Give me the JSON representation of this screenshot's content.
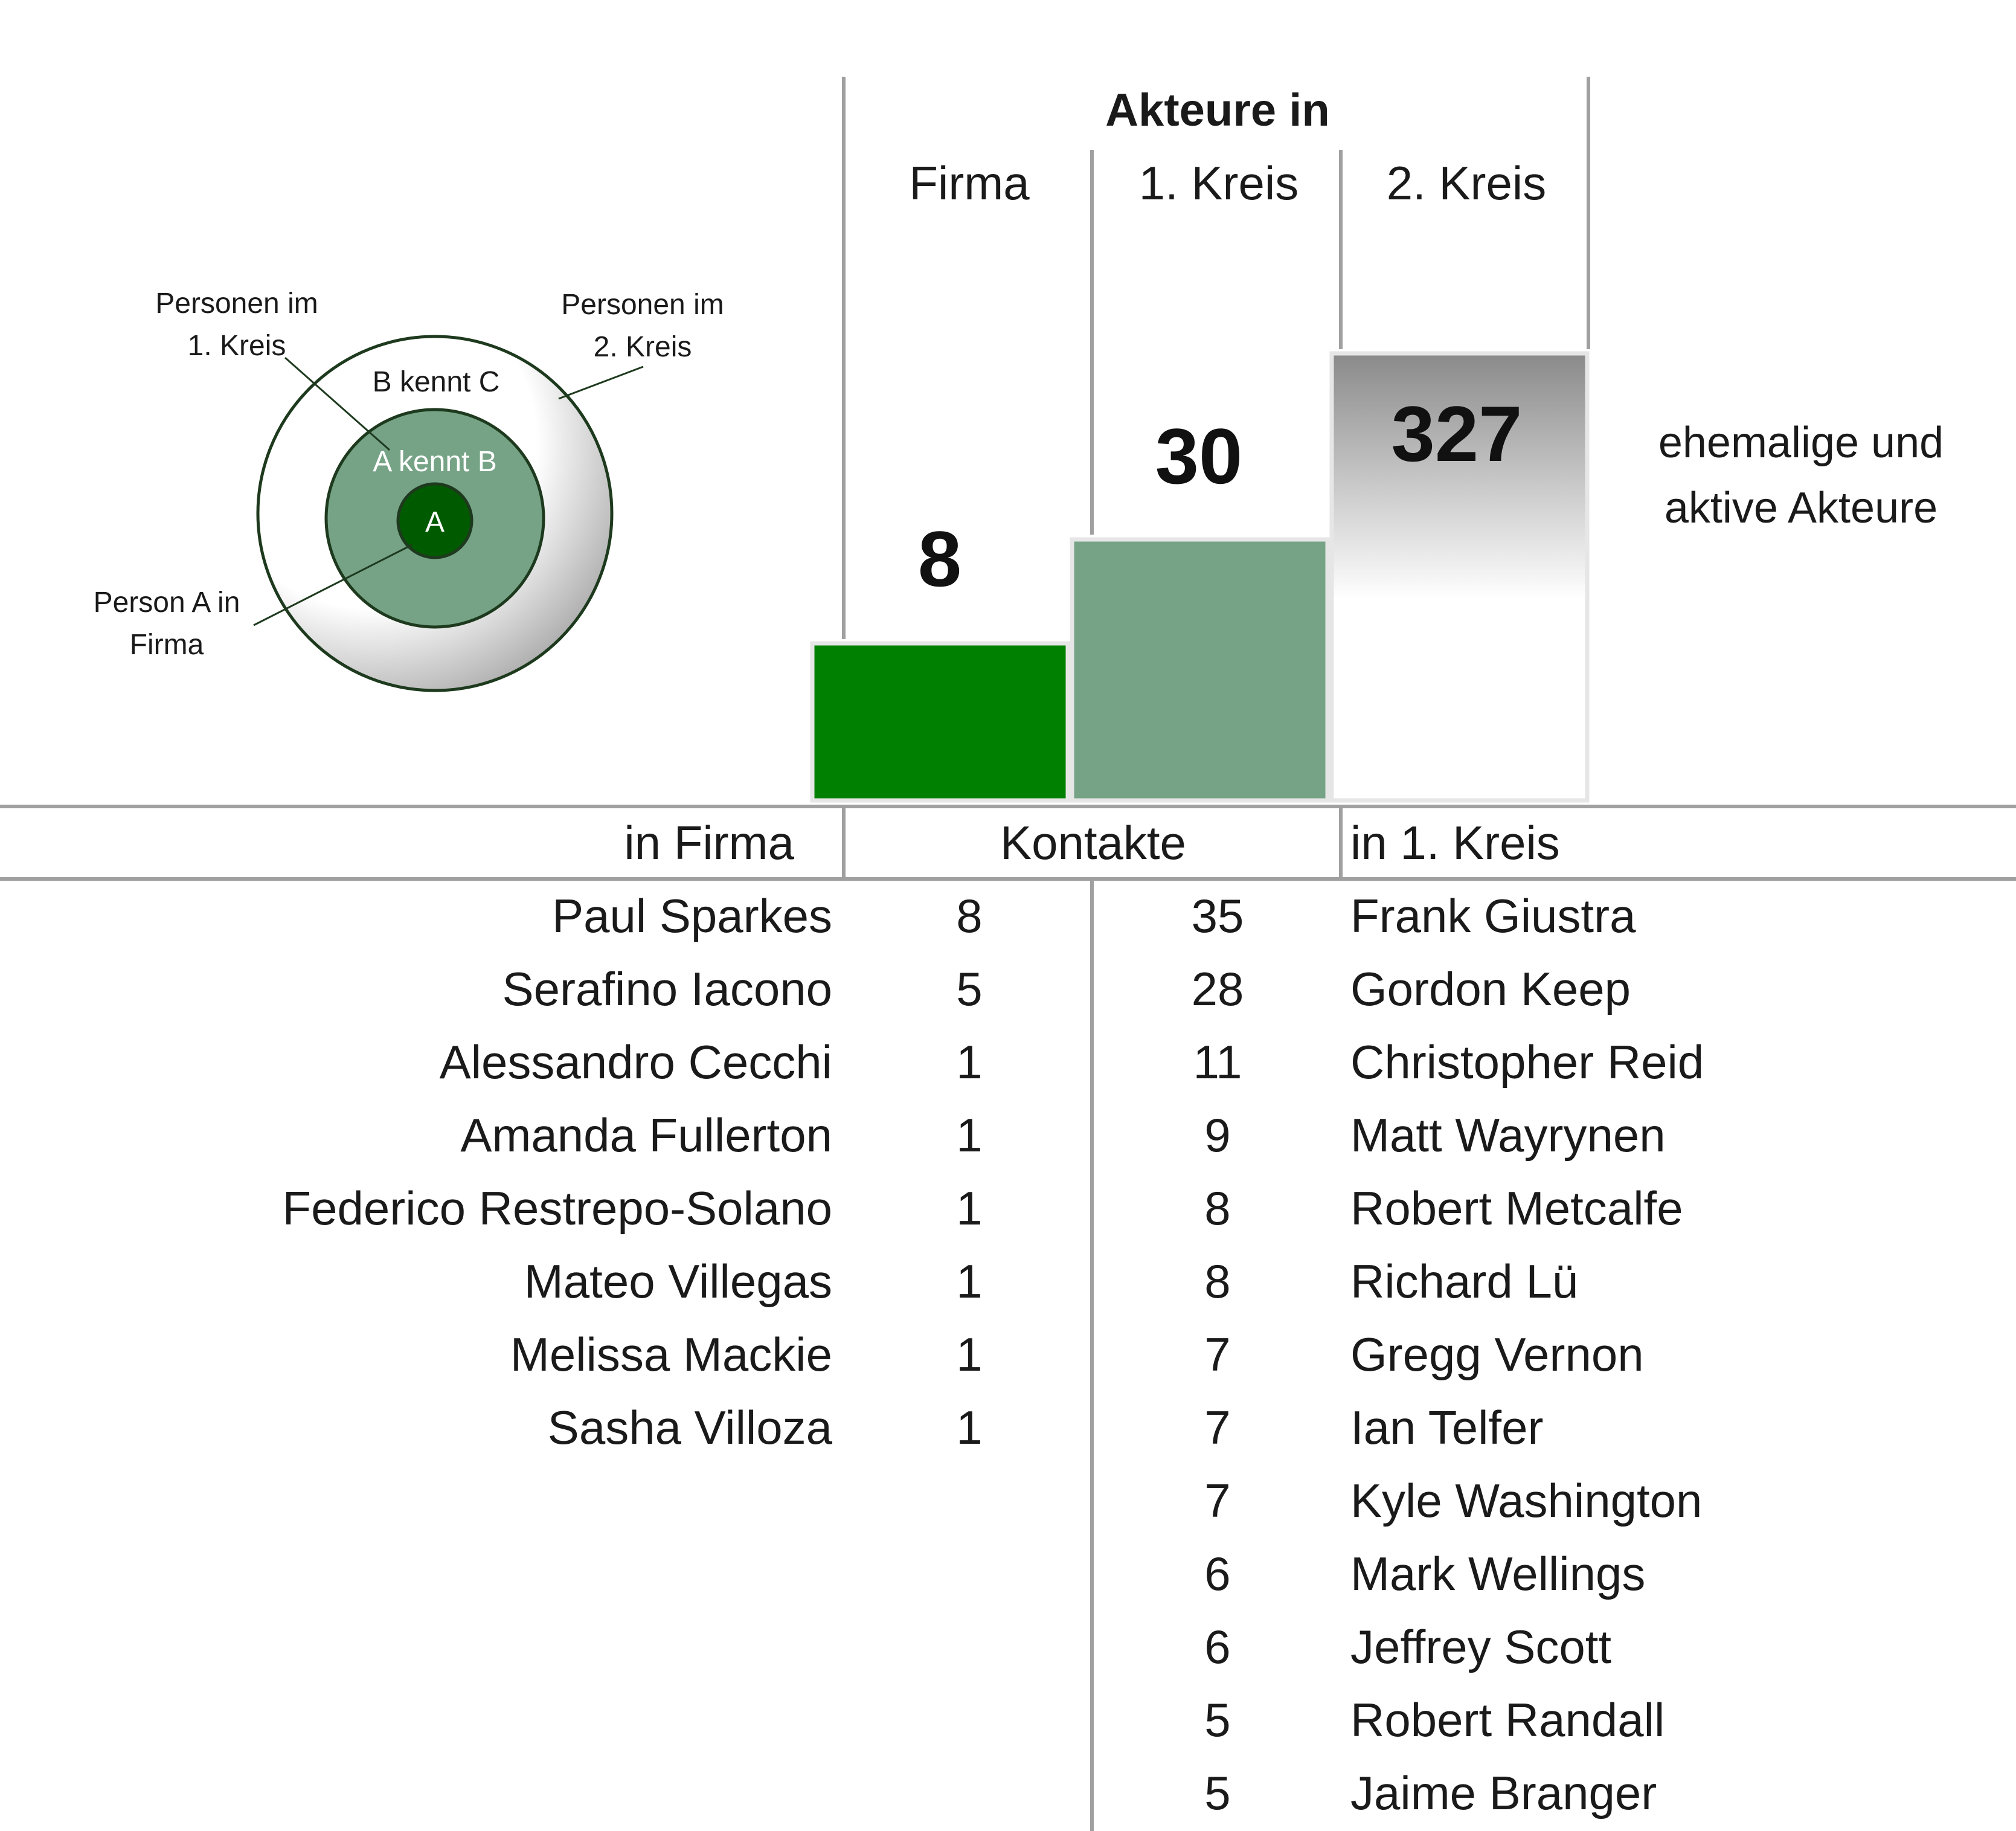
{
  "chart_data": {
    "type": "bar",
    "title": "Akteure in",
    "categories": [
      "Firma",
      "1. Kreis",
      "2. Kreis"
    ],
    "values": [
      8,
      30,
      327
    ],
    "annotation": [
      "ehemalige und",
      "aktive Akteure"
    ],
    "colors": {
      "firma": "#008000",
      "kreis1": "#76a386",
      "kreis2_top": "#8a8a8a",
      "kreis2_bottom": "#ffffff"
    }
  },
  "diagram": {
    "center_label": "A",
    "ring1_label": "A kennt B",
    "ring2_label": "B kennt C",
    "callout_kreis1": [
      "Personen im",
      "1. Kreis"
    ],
    "callout_kreis2": [
      "Personen im",
      "2. Kreis"
    ],
    "callout_firma": [
      "Person A in",
      "Firma"
    ],
    "colors": {
      "center": "#005a00",
      "ring1": "#76a386",
      "ring_stroke": "#1e3a1e"
    }
  },
  "table": {
    "headers": {
      "left": "in Firma",
      "middle": "Kontakte",
      "right": "in 1. Kreis"
    },
    "firma": [
      {
        "name": "Paul Sparkes",
        "contacts": 8
      },
      {
        "name": "Serafino Iacono",
        "contacts": 5
      },
      {
        "name": "Alessandro Cecchi",
        "contacts": 1
      },
      {
        "name": "Amanda Fullerton",
        "contacts": 1
      },
      {
        "name": "Federico Restrepo-Solano",
        "contacts": 1
      },
      {
        "name": "Mateo Villegas",
        "contacts": 1
      },
      {
        "name": "Melissa Mackie",
        "contacts": 1
      },
      {
        "name": "Sasha Villoza",
        "contacts": 1
      }
    ],
    "kreis1": [
      {
        "name": "Frank Giustra",
        "contacts": 35
      },
      {
        "name": "Gordon Keep",
        "contacts": 28
      },
      {
        "name": "Christopher Reid",
        "contacts": 11
      },
      {
        "name": "Matt Wayrynen",
        "contacts": 9
      },
      {
        "name": "Robert Metcalfe",
        "contacts": 8
      },
      {
        "name": "Richard Lü",
        "contacts": 8
      },
      {
        "name": "Gregg Vernon",
        "contacts": 7
      },
      {
        "name": "Ian Telfer",
        "contacts": 7
      },
      {
        "name": "Kyle Washington",
        "contacts": 7
      },
      {
        "name": "Mark Wellings",
        "contacts": 6
      },
      {
        "name": "Jeffrey Scott",
        "contacts": 6
      },
      {
        "name": "Robert Randall",
        "contacts": 5
      },
      {
        "name": "Jaime Branger",
        "contacts": 5
      }
    ]
  }
}
